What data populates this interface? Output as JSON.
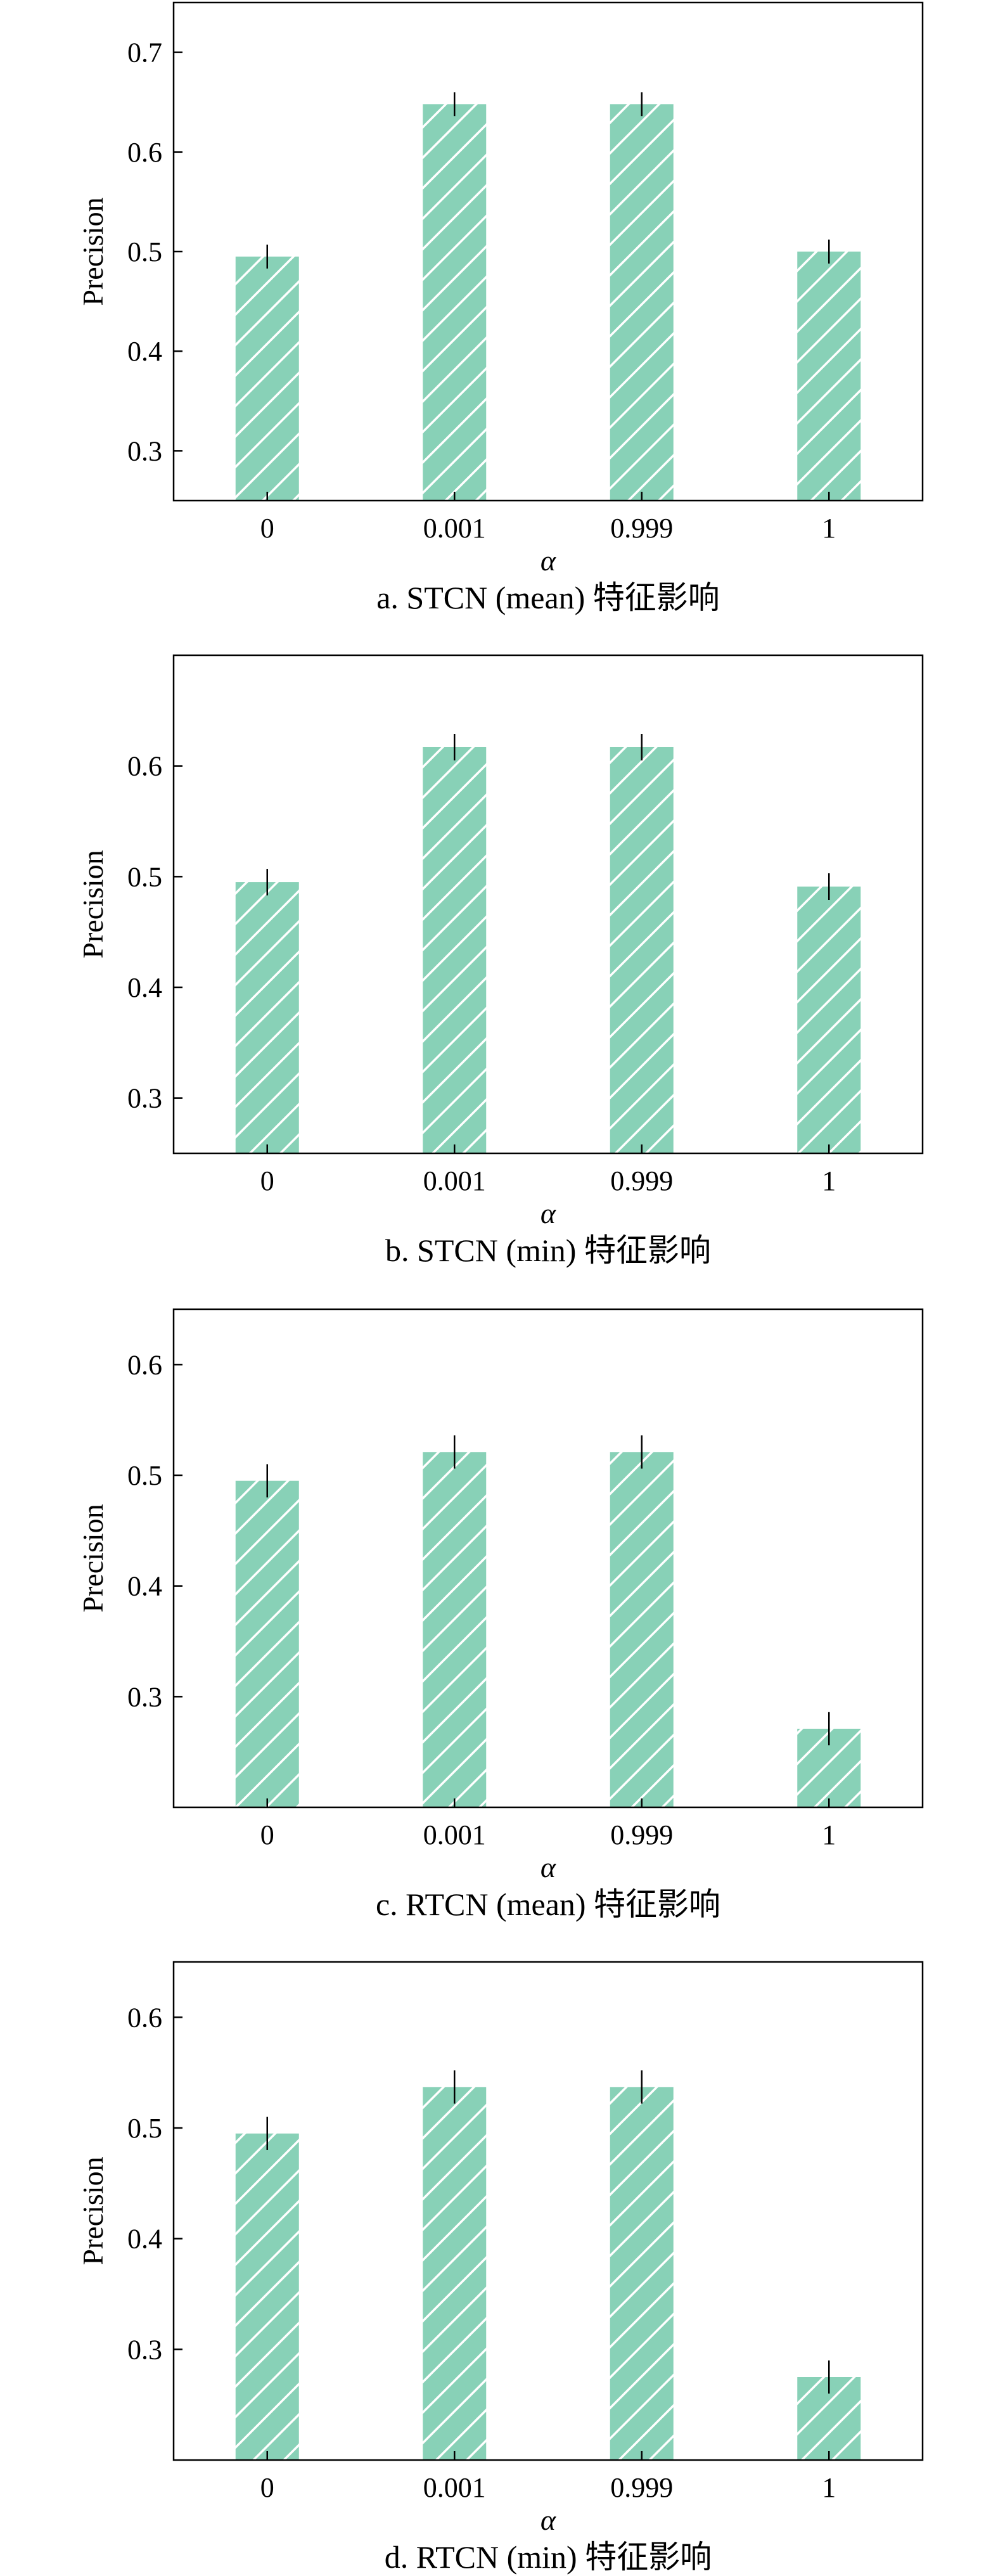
{
  "chart_data": [
    {
      "type": "bar",
      "title": "a. STCN (mean) 特征影响",
      "xlabel": "α",
      "ylabel": "Precision",
      "categories": [
        "0",
        "0.001",
        "0.999",
        "1"
      ],
      "values": [
        0.495,
        0.648,
        0.648,
        0.5
      ],
      "errors": [
        0.012,
        0.012,
        0.012,
        0.012
      ],
      "ylim": [
        0.25,
        0.75
      ],
      "yticks": [
        0.3,
        0.4,
        0.5,
        0.6,
        0.7
      ],
      "grid": false,
      "bar_color": "#88d1b7",
      "hatch": "diagonal"
    },
    {
      "type": "bar",
      "title": "b. STCN (min) 特征影响",
      "xlabel": "α",
      "ylabel": "Precision",
      "categories": [
        "0",
        "0.001",
        "0.999",
        "1"
      ],
      "values": [
        0.495,
        0.617,
        0.617,
        0.491
      ],
      "errors": [
        0.012,
        0.012,
        0.012,
        0.012
      ],
      "ylim": [
        0.25,
        0.7
      ],
      "yticks": [
        0.3,
        0.4,
        0.5,
        0.6
      ],
      "grid": false,
      "bar_color": "#88d1b7",
      "hatch": "diagonal"
    },
    {
      "type": "bar",
      "title": "c. RTCN (mean) 特征影响",
      "xlabel": "α",
      "ylabel": "Precision",
      "categories": [
        "0",
        "0.001",
        "0.999",
        "1"
      ],
      "values": [
        0.495,
        0.521,
        0.521,
        0.271
      ],
      "errors": [
        0.015,
        0.015,
        0.015,
        0.015
      ],
      "ylim": [
        0.2,
        0.65
      ],
      "yticks": [
        0.3,
        0.4,
        0.5,
        0.6
      ],
      "grid": false,
      "bar_color": "#88d1b7",
      "hatch": "diagonal"
    },
    {
      "type": "bar",
      "title": "d. RTCN (min) 特征影响",
      "xlabel": "α",
      "ylabel": "Precision",
      "categories": [
        "0",
        "0.001",
        "0.999",
        "1"
      ],
      "values": [
        0.495,
        0.537,
        0.537,
        0.275
      ],
      "errors": [
        0.015,
        0.015,
        0.015,
        0.015
      ],
      "ylim": [
        0.2,
        0.65
      ],
      "yticks": [
        0.3,
        0.4,
        0.5,
        0.6
      ],
      "grid": false,
      "bar_color": "#88d1b7",
      "hatch": "diagonal"
    }
  ]
}
